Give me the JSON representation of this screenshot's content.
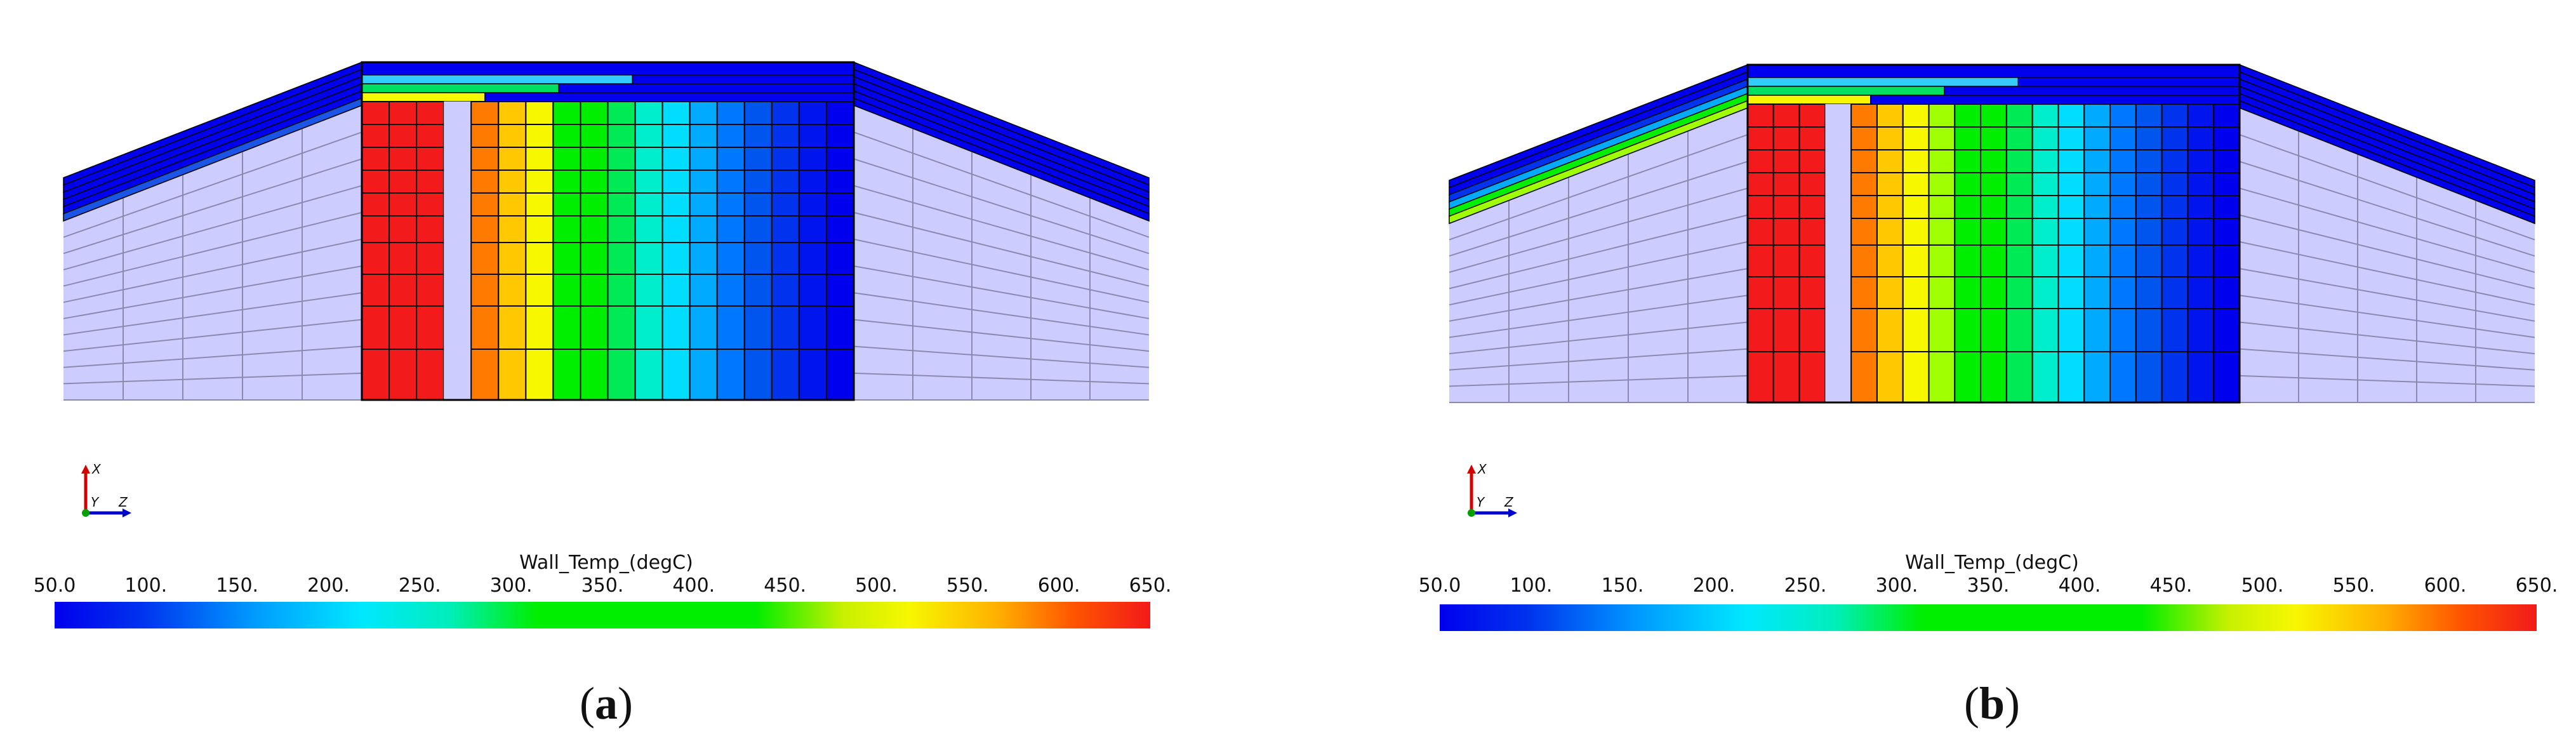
{
  "colorbar": {
    "title": "Wall_Temp_(degC)",
    "ticks": [
      "50.0",
      "100.",
      "150.",
      "200.",
      "250.",
      "300.",
      "350.",
      "400.",
      "450.",
      "500.",
      "550.",
      "600.",
      "650."
    ],
    "min": 50,
    "max": 650
  },
  "triad": {
    "x": "X",
    "y": "Y",
    "z": "Z"
  },
  "colors": {
    "mesh_background": "#ccccff",
    "grid_line": "#8a8ab0",
    "cell_border": "#000000"
  },
  "panels": [
    {
      "label_open": "(",
      "label_letter": "a",
      "label_close": ")",
      "surface_layer_colors": [
        "#0000ee",
        "#0000ee",
        "#0000ee",
        "#0000ee",
        "#0000ee",
        "#1a55e6"
      ],
      "wall_surface_rows": [
        "#33ccff",
        "#00e060",
        "#f7f700"
      ],
      "column_colors": [
        "#f21a1a",
        "#f21a1a",
        "#f21a1a",
        "#ccccff",
        "#ff7a00",
        "#ffc800",
        "#f7f700",
        "#00ee00",
        "#00ee00",
        "#00ea55",
        "#00eecc",
        "#00ddff",
        "#00aaff",
        "#0077ff",
        "#0055ee",
        "#0033ee",
        "#0015ee",
        "#0000ee"
      ]
    },
    {
      "label_open": "(",
      "label_letter": "b",
      "label_close": ")",
      "surface_layer_colors": [
        "#0000ee",
        "#0000ee",
        "#0033ee",
        "#00aaff",
        "#00ee00",
        "#a0ff00"
      ],
      "wall_surface_rows": [
        "#33ccff",
        "#00e060",
        "#f7f700"
      ],
      "column_colors": [
        "#f21a1a",
        "#f21a1a",
        "#f21a1a",
        "#ccccff",
        "#ff7a00",
        "#ffc800",
        "#f7f700",
        "#a0ff00",
        "#00ee00",
        "#00ee00",
        "#00ea55",
        "#00eecc",
        "#00ddff",
        "#00aaff",
        "#0077ff",
        "#0055ee",
        "#0033ee",
        "#0015ee",
        "#0000ee"
      ]
    }
  ]
}
